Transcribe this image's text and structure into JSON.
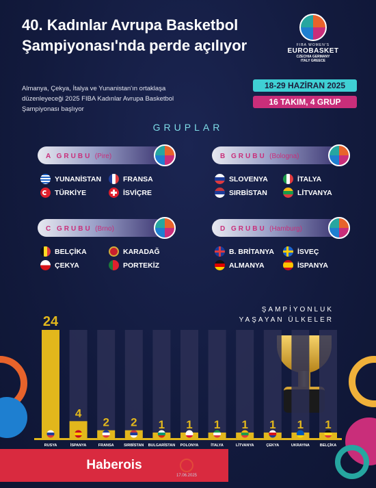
{
  "header": {
    "title": "40. Kadınlar Avrupa Basketbol Şampiyonası'nda perde açılıyor",
    "subtitle": "Almanya, Çekya, İtalya ve Yunanistan'ın ortaklaşa düzenleyeceği 2025 FIBA Kadınlar Avrupa Basketbol Şampiyonası başlıyor"
  },
  "logo": {
    "fiba": "FIBA WOMEN'S",
    "word": "EUROBASKET",
    "hosts_1": "CZECHIA GERMANY",
    "hosts_2": "ITALY GREECE"
  },
  "info": {
    "dates": "18-29 HAZİRAN 2025",
    "format": "16 TAKIM, 4 GRUP"
  },
  "groups_heading": "GRUPLAR",
  "groups": [
    {
      "name": "A GRUBU",
      "city": "(Pire)",
      "teams": [
        {
          "name": "YUNANİSTAN",
          "flag": "greece-flag"
        },
        {
          "name": "FRANSA",
          "flag": "france-flag"
        },
        {
          "name": "TÜRKİYE",
          "flag": "turkey-flag"
        },
        {
          "name": "İSVİÇRE",
          "flag": "switzerland-flag"
        }
      ]
    },
    {
      "name": "B GRUBU",
      "city": "(Bologna)",
      "teams": [
        {
          "name": "SLOVENYA",
          "flag": "slovenia-flag"
        },
        {
          "name": "İTALYA",
          "flag": "italy-flag"
        },
        {
          "name": "SIRBİSTAN",
          "flag": "serbia-flag"
        },
        {
          "name": "LİTVANYA",
          "flag": "lithuania-flag"
        }
      ]
    },
    {
      "name": "C GRUBU",
      "city": "(Brno)",
      "teams": [
        {
          "name": "BELÇİKA",
          "flag": "belgium-flag"
        },
        {
          "name": "KARADAĞ",
          "flag": "montenegro-flag"
        },
        {
          "name": "ÇEKYA",
          "flag": "czechia-flag"
        },
        {
          "name": "PORTEKİZ",
          "flag": "portugal-flag"
        }
      ]
    },
    {
      "name": "D GRUBU",
      "city": "(Hamburg)",
      "teams": [
        {
          "name": "B. BRİTANYA",
          "flag": "uk-flag"
        },
        {
          "name": "İSVEÇ",
          "flag": "sweden-flag"
        },
        {
          "name": "ALMANYA",
          "flag": "germany-flag"
        },
        {
          "name": "İSPANYA",
          "flag": "spain-flag"
        }
      ]
    }
  ],
  "colors": {
    "background": "#121a3d",
    "bar_gold": "#e2b71c",
    "accent_pink": "#c92e7a",
    "accent_cyan": "#3fd0d4",
    "brand_red": "#d92a3f"
  },
  "chart_data": {
    "type": "bar",
    "title": "ŞAMPİYONLUK YAŞAYAN ÜLKELER",
    "categories": [
      "RUSYA",
      "İSPANYA",
      "FRANSA",
      "SIRBİSTAN",
      "BULGARİSTAN",
      "POLONYA",
      "İTALYA",
      "LİTVANYA",
      "ÇEKYA",
      "UKRAYNA",
      "BELÇİKA"
    ],
    "category_note": {
      "RUSYA": "(21 SSCB)"
    },
    "values": [
      24,
      4,
      2,
      2,
      1,
      1,
      1,
      1,
      1,
      1,
      1
    ],
    "ylim": [
      0,
      24
    ],
    "grid": false
  },
  "footer": {
    "brand": "Haberois",
    "date": "17.06.2025"
  }
}
